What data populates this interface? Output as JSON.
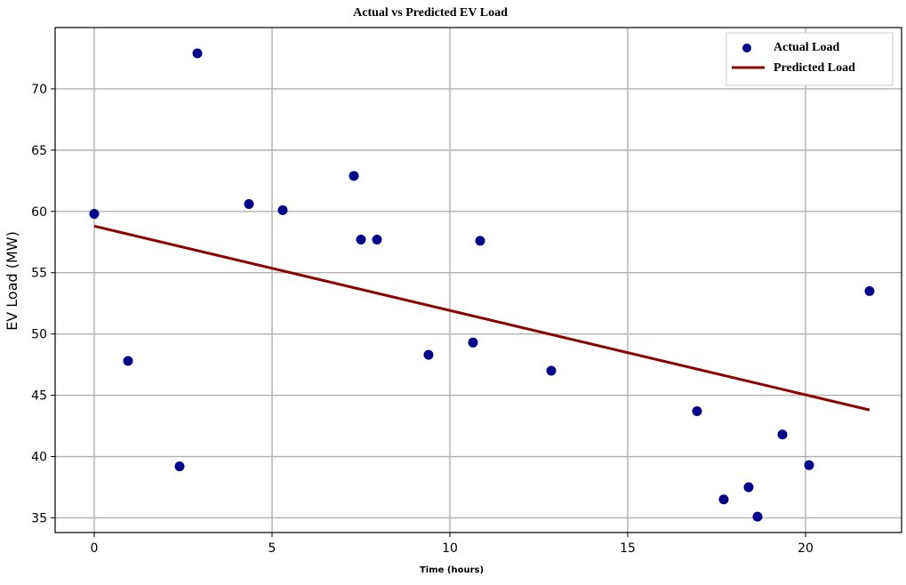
{
  "chart_data": {
    "type": "scatter",
    "title": "Actual vs Predicted EV Load",
    "xlabel": "Time (hours)",
    "ylabel": "EV Load (MW)",
    "xlim": [
      -1.1,
      22.7
    ],
    "ylim": [
      33.8,
      75
    ],
    "xticks": [
      0,
      5,
      10,
      15,
      20
    ],
    "yticks": [
      35,
      40,
      45,
      50,
      55,
      60,
      65,
      70
    ],
    "grid": true,
    "legend_position": "top-right",
    "series": [
      {
        "name": "Actual Load",
        "kind": "scatter",
        "color": "#00008b",
        "points": [
          {
            "x": 0.0,
            "y": 59.8
          },
          {
            "x": 0.95,
            "y": 47.8
          },
          {
            "x": 2.4,
            "y": 39.2
          },
          {
            "x": 2.9,
            "y": 72.9
          },
          {
            "x": 4.35,
            "y": 60.6
          },
          {
            "x": 5.3,
            "y": 60.1
          },
          {
            "x": 7.3,
            "y": 62.9
          },
          {
            "x": 7.5,
            "y": 57.7
          },
          {
            "x": 7.95,
            "y": 57.7
          },
          {
            "x": 9.4,
            "y": 48.3
          },
          {
            "x": 10.65,
            "y": 49.3
          },
          {
            "x": 10.85,
            "y": 57.6
          },
          {
            "x": 12.85,
            "y": 47.0
          },
          {
            "x": 16.95,
            "y": 43.7
          },
          {
            "x": 17.7,
            "y": 36.5
          },
          {
            "x": 18.4,
            "y": 37.5
          },
          {
            "x": 18.65,
            "y": 35.1
          },
          {
            "x": 19.35,
            "y": 41.8
          },
          {
            "x": 20.1,
            "y": 39.3
          },
          {
            "x": 21.8,
            "y": 53.5
          }
        ]
      },
      {
        "name": "Predicted Load",
        "kind": "line",
        "color": "#8b0000",
        "points": [
          {
            "x": 0.0,
            "y": 58.8
          },
          {
            "x": 21.8,
            "y": 43.8
          }
        ]
      }
    ]
  }
}
